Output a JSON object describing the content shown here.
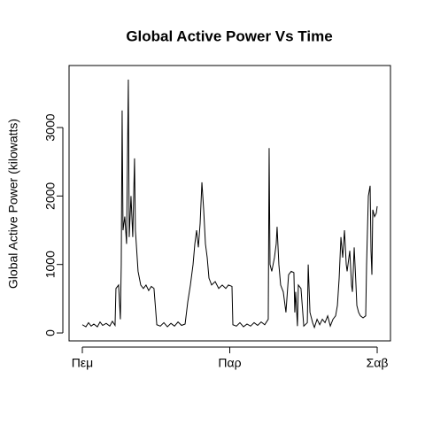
{
  "chart_data": {
    "type": "line",
    "title": "Global Active Power Vs Time",
    "y_label": "Global Active Power (kilowatts)",
    "color": "#000000",
    "xlim": [
      -0.09,
      2.09
    ],
    "xticks": [
      {
        "value": 0,
        "label": "Πεμ"
      },
      {
        "value": 1,
        "label": "Παρ"
      },
      {
        "value": 2,
        "label": "Σαβ"
      }
    ],
    "ylim": [
      -116,
      3906
    ],
    "yticks": [
      0,
      1000,
      2000,
      3000
    ],
    "x": [
      0,
      0.024,
      0.042,
      0.06,
      0.078,
      0.102,
      0.12,
      0.138,
      0.162,
      0.186,
      0.204,
      0.222,
      0.228,
      0.246,
      0.258,
      0.264,
      0.27,
      0.276,
      0.288,
      0.3,
      0.312,
      0.318,
      0.33,
      0.342,
      0.354,
      0.36,
      0.378,
      0.396,
      0.414,
      0.432,
      0.45,
      0.468,
      0.486,
      0.505,
      0.529,
      0.553,
      0.577,
      0.601,
      0.625,
      0.649,
      0.673,
      0.697,
      0.715,
      0.733,
      0.751,
      0.763,
      0.775,
      0.787,
      0.799,
      0.811,
      0.823,
      0.835,
      0.847,
      0.859,
      0.877,
      0.901,
      0.925,
      0.949,
      0.973,
      0.991,
      1.015,
      1.021,
      1.045,
      1.069,
      1.093,
      1.117,
      1.141,
      1.165,
      1.189,
      1.213,
      1.237,
      1.261,
      1.267,
      1.273,
      1.285,
      1.303,
      1.315,
      1.321,
      1.333,
      1.345,
      1.363,
      1.381,
      1.399,
      1.417,
      1.435,
      1.441,
      1.447,
      1.459,
      1.465,
      1.483,
      1.502,
      1.526,
      1.532,
      1.544,
      1.562,
      1.574,
      1.592,
      1.61,
      1.628,
      1.646,
      1.664,
      1.682,
      1.7,
      1.718,
      1.73,
      1.742,
      1.754,
      1.766,
      1.778,
      1.79,
      1.796,
      1.808,
      1.814,
      1.826,
      1.832,
      1.844,
      1.856,
      1.862,
      1.874,
      1.886,
      1.904,
      1.922,
      1.928,
      1.934,
      1.94,
      1.952,
      1.958,
      1.964,
      1.97,
      1.982,
      1.994,
      2.0
    ],
    "values": [
      120,
      90,
      150,
      100,
      130,
      90,
      160,
      110,
      140,
      100,
      170,
      110,
      650,
      700,
      200,
      1000,
      3250,
      1500,
      1700,
      1300,
      3700,
      1400,
      2000,
      1400,
      2550,
      1500,
      900,
      700,
      650,
      700,
      620,
      680,
      650,
      120,
      100,
      150,
      90,
      140,
      100,
      160,
      110,
      130,
      450,
      700,
      1000,
      1300,
      1500,
      1250,
      1600,
      2200,
      1800,
      1300,
      1100,
      800,
      700,
      750,
      650,
      700,
      650,
      700,
      680,
      120,
      100,
      150,
      90,
      130,
      100,
      150,
      110,
      160,
      120,
      200,
      2700,
      1000,
      900,
      1100,
      1300,
      1550,
      1000,
      700,
      600,
      300,
      850,
      900,
      880,
      300,
      600,
      100,
      700,
      650,
      100,
      150,
      1000,
      300,
      150,
      80,
      200,
      120,
      200,
      150,
      250,
      100,
      200,
      250,
      400,
      800,
      1400,
      1100,
      1500,
      1000,
      900,
      1100,
      1200,
      700,
      600,
      1250,
      700,
      400,
      300,
      250,
      220,
      250,
      1000,
      1500,
      2000,
      2150,
      1200,
      850,
      1800,
      1700,
      1750,
      1850
    ]
  }
}
